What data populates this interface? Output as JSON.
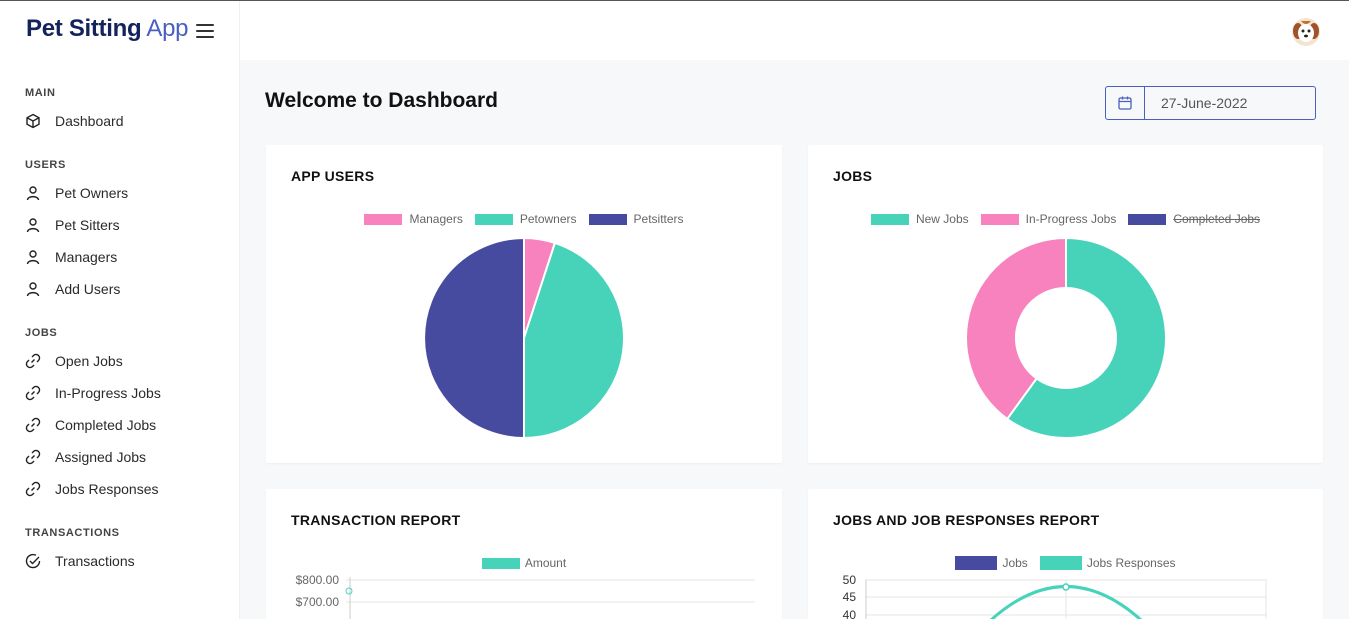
{
  "brand": {
    "bold": "Pet Sitting",
    "light": " App"
  },
  "sidebar": {
    "sections": [
      {
        "title": "MAIN",
        "items": [
          {
            "label": "Dashboard",
            "icon": "cube-icon"
          }
        ]
      },
      {
        "title": "USERS",
        "items": [
          {
            "label": "Pet Owners",
            "icon": "user-icon"
          },
          {
            "label": "Pet Sitters",
            "icon": "user-icon"
          },
          {
            "label": "Managers",
            "icon": "user-icon"
          },
          {
            "label": "Add Users",
            "icon": "user-icon"
          }
        ]
      },
      {
        "title": "JOBS",
        "items": [
          {
            "label": "Open Jobs",
            "icon": "link-icon"
          },
          {
            "label": "In-Progress Jobs",
            "icon": "link-icon"
          },
          {
            "label": "Completed Jobs",
            "icon": "link-icon"
          },
          {
            "label": "Assigned Jobs",
            "icon": "link-icon"
          },
          {
            "label": "Jobs Responses",
            "icon": "link-icon"
          }
        ]
      },
      {
        "title": "TRANSACTIONS",
        "items": [
          {
            "label": "Transactions",
            "icon": "check-circle-icon"
          }
        ]
      }
    ]
  },
  "main": {
    "welcome": "Welcome to Dashboard",
    "date_value": "27-June-2022"
  },
  "colors": {
    "pink": "#f882bd",
    "teal": "#46d3ba",
    "indigo": "#464b9f",
    "accent": "#4a5fc1"
  },
  "chart_data": [
    {
      "type": "pie",
      "title": "APP USERS",
      "categories": [
        "Managers",
        "Petowners",
        "Petsitters"
      ],
      "values": [
        5,
        45,
        50
      ],
      "colors": [
        "#f882bd",
        "#46d3ba",
        "#464b9f"
      ],
      "legend": "top"
    },
    {
      "type": "pie",
      "variant": "doughnut",
      "title": "JOBS",
      "categories": [
        "New Jobs",
        "In-Progress Jobs",
        "Completed Jobs"
      ],
      "values": [
        60,
        40,
        0
      ],
      "hidden": [
        false,
        false,
        true
      ],
      "colors": [
        "#46d3ba",
        "#f882bd",
        "#464b9f"
      ],
      "legend": "top"
    },
    {
      "type": "line",
      "title": "TRANSACTION REPORT",
      "series": [
        {
          "name": "Amount",
          "values": [
            750
          ]
        }
      ],
      "y_ticks": [
        "$800.00",
        "$700.00"
      ],
      "ylim": [
        700,
        800
      ],
      "legend": "top"
    },
    {
      "type": "line",
      "title": "JOBS AND JOB RESPONSES REPORT",
      "series": [
        {
          "name": "Jobs",
          "values": []
        },
        {
          "name": "Jobs Responses",
          "values": [
            48
          ]
        }
      ],
      "y_ticks": [
        "50",
        "45",
        "40"
      ],
      "ylim": [
        40,
        50
      ],
      "legend": "top"
    }
  ]
}
